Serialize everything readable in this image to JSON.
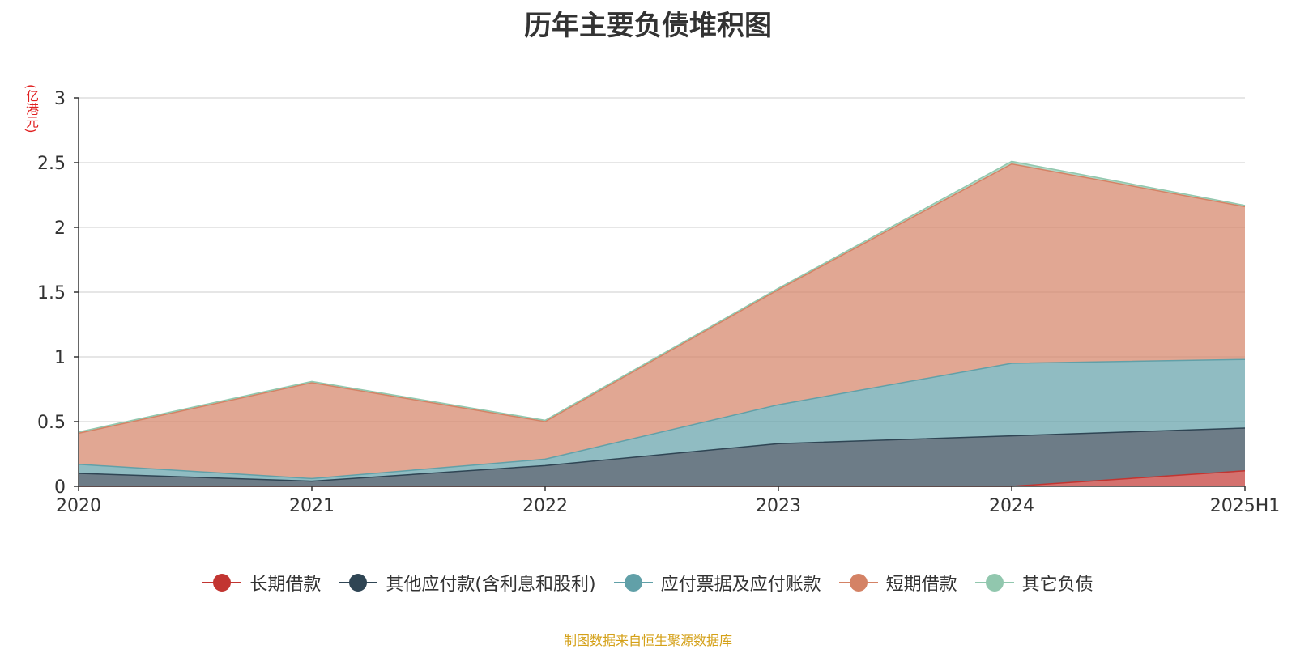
{
  "chart_data": {
    "type": "area",
    "stacked": true,
    "title": "历年主要负债堆积图",
    "ylabel": "(亿港元)",
    "categories": [
      "2020",
      "2021",
      "2022",
      "2023",
      "2024",
      "2025H1"
    ],
    "ylim": [
      0,
      3
    ],
    "yticks": [
      0,
      0.5,
      1,
      1.5,
      2,
      2.5,
      3
    ],
    "ytick_labels": [
      "0",
      "0.5",
      "1",
      "1.5",
      "2",
      "2.5",
      "3"
    ],
    "series": [
      {
        "name": "长期借款",
        "color": "#c23531",
        "values": [
          0,
          0,
          0,
          0,
          0,
          0.12
        ]
      },
      {
        "name": "其他应付款(含利息和股利)",
        "color": "#2f4554",
        "values": [
          0.1,
          0.04,
          0.16,
          0.33,
          0.39,
          0.33
        ]
      },
      {
        "name": "应付票据及应付账款",
        "color": "#61a0a8",
        "values": [
          0.07,
          0.02,
          0.05,
          0.3,
          0.56,
          0.53
        ]
      },
      {
        "name": "短期借款",
        "color": "#d48265",
        "values": [
          0.24,
          0.74,
          0.29,
          0.89,
          1.54,
          1.18
        ]
      },
      {
        "name": "其它负债",
        "color": "#91c7ae",
        "values": [
          0.01,
          0.01,
          0.01,
          0.01,
          0.02,
          0.01
        ]
      }
    ],
    "legend_position": "bottom-center",
    "grid": true
  },
  "footer": {
    "source": "制图数据来自恒生聚源数据库"
  }
}
